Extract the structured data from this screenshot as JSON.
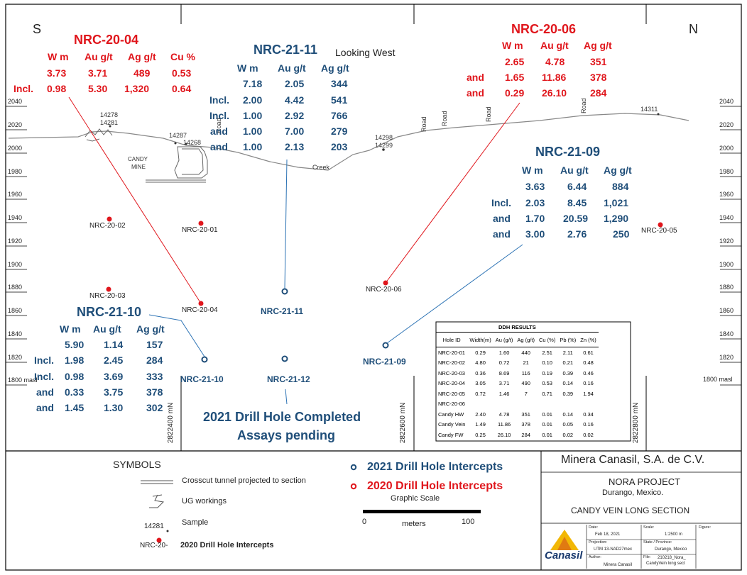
{
  "compass": {
    "south": "S",
    "north": "N",
    "looking": "Looking  West"
  },
  "elevations_left": [
    "2040",
    "2020",
    "2000",
    "1980",
    "1960",
    "1940",
    "1920",
    "1900",
    "1880",
    "1860",
    "1840",
    "1820",
    "1800 masl"
  ],
  "elevations_right": [
    "2040",
    "2020",
    "2000",
    "1980",
    "1960",
    "1940",
    "1920",
    "1900",
    "1880",
    "1860",
    "1840",
    "1820",
    "1800 masl"
  ],
  "northings": [
    "2822400 mN",
    "2822600 mN",
    "2822800 mN"
  ],
  "surface_labels": {
    "s14278": "14278",
    "s14281": "14281",
    "s14287": "14287",
    "s14268": "14268",
    "s14298": "14298",
    "s14299": "14299",
    "s14311": "14311",
    "candy_mine_1": "CANDY",
    "candy_mine_2": "MINE",
    "creek": "Creek",
    "road1": "Road",
    "road2": "Road",
    "road3": "Road",
    "road4": "Road",
    "road5": "Road"
  },
  "holes": {
    "h2001": "NRC-20-01",
    "h2002": "NRC-20-02",
    "h2003": "NRC-20-03",
    "h2004": "NRC-20-04",
    "h2005": "NRC-20-05",
    "h2006": "NRC-20-06",
    "h2109": "NRC-21-09",
    "h2110": "NRC-21-10",
    "h2111": "NRC-21-11",
    "h2112": "NRC-21-12"
  },
  "int_2004": {
    "title": "NRC-20-04",
    "headers": [
      "W m",
      "Au g/t",
      "Ag g/t",
      "Cu %"
    ],
    "rows": [
      {
        "prefix": "",
        "w": "3.73",
        "au": "3.71",
        "ag": "489",
        "cu": "0.53"
      },
      {
        "prefix": "Incl.",
        "w": "0.98",
        "au": "5.30",
        "ag": "1,320",
        "cu": "0.64"
      }
    ]
  },
  "int_2111": {
    "title": "NRC-21-11",
    "headers": [
      "W m",
      "Au g/t",
      "Ag g/t"
    ],
    "rows": [
      {
        "prefix": "",
        "w": "7.18",
        "au": "2.05",
        "ag": "344"
      },
      {
        "prefix": "Incl.",
        "w": "2.00",
        "au": "4.42",
        "ag": "541"
      },
      {
        "prefix": "Incl.",
        "w": "1.00",
        "au": "2.92",
        "ag": "766"
      },
      {
        "prefix": "and",
        "w": "1.00",
        "au": "7.00",
        "ag": "279"
      },
      {
        "prefix": "and",
        "w": "1.00",
        "au": "2.13",
        "ag": "203"
      }
    ]
  },
  "int_2006": {
    "title": "NRC-20-06",
    "headers": [
      "W m",
      "Au g/t",
      "Ag g/t"
    ],
    "rows": [
      {
        "prefix": "",
        "w": "2.65",
        "au": "4.78",
        "ag": "351"
      },
      {
        "prefix": "and",
        "w": "1.65",
        "au": "11.86",
        "ag": "378"
      },
      {
        "prefix": "and",
        "w": "0.29",
        "au": "26.10",
        "ag": "284"
      }
    ]
  },
  "int_2109": {
    "title": "NRC-21-09",
    "headers": [
      "W m",
      "Au g/t",
      "Ag g/t"
    ],
    "rows": [
      {
        "prefix": "",
        "w": "3.63",
        "au": "6.44",
        "ag": "884"
      },
      {
        "prefix": "Incl.",
        "w": "2.03",
        "au": "8.45",
        "ag": "1,021"
      },
      {
        "prefix": "and",
        "w": "1.70",
        "au": "20.59",
        "ag": "1,290"
      },
      {
        "prefix": "and",
        "w": "3.00",
        "au": "2.76",
        "ag": "250"
      }
    ]
  },
  "int_2110": {
    "title": "NRC-21-10",
    "headers": [
      "W m",
      "Au g/t",
      "Ag g/t"
    ],
    "rows": [
      {
        "prefix": "",
        "w": "5.90",
        "au": "1.14",
        "ag": "157"
      },
      {
        "prefix": "Incl.",
        "w": "1.98",
        "au": "2.45",
        "ag": "284"
      },
      {
        "prefix": "Incl.",
        "w": "0.98",
        "au": "3.69",
        "ag": "333"
      },
      {
        "prefix": "and",
        "w": "0.33",
        "au": "3.75",
        "ag": "378"
      },
      {
        "prefix": "and",
        "w": "1.45",
        "au": "1.30",
        "ag": "302"
      }
    ]
  },
  "pending_note": {
    "line1": "2021 Drill Hole Completed",
    "line2": "Assays pending"
  },
  "ddh": {
    "title": "DDH RESULTS",
    "headers": [
      "Hole ID",
      "Width(m)",
      "Au (g/t)",
      "Ag (g/t)",
      "Cu (%)",
      "Pb (%)",
      "Zn (%)"
    ],
    "rows": [
      [
        "NRC-20-01",
        "0.29",
        "1.60",
        "440",
        "2.51",
        "2.11",
        "0.61"
      ],
      [
        "NRC-20-02",
        "4.80",
        "0.72",
        "21",
        "0.10",
        "0.21",
        "0.48"
      ],
      [
        "NRC-20-03",
        "0.36",
        "8.69",
        "116",
        "0.19",
        "0.39",
        "0.46"
      ],
      [
        "NRC-20-04",
        "3.05",
        "3.71",
        "490",
        "0.53",
        "0.14",
        "0.16"
      ],
      [
        "NRC-20-05",
        "0.72",
        "1.46",
        "7",
        "0.71",
        "0.39",
        "1.94"
      ],
      [
        "NRC-20-06",
        "",
        "",
        "",
        "",
        "",
        ""
      ],
      [
        "Candy HW",
        "2.40",
        "4.78",
        "351",
        "0.01",
        "0.14",
        "0.34"
      ],
      [
        "Candy Vein",
        "1.49",
        "11.86",
        "378",
        "0.01",
        "0.05",
        "0.16"
      ],
      [
        "Candy FW",
        "0.25",
        "26.10",
        "284",
        "0.01",
        "0.02",
        "0.02"
      ]
    ]
  },
  "legend": {
    "title": "SYMBOLS",
    "tunnel": "Crosscut tunnel projected to section",
    "ug": "UG workings",
    "sample_num": "14281",
    "sample": "Sample",
    "hole_prefix": "NRC-20-",
    "hole": "2020 Drill Hole Intercepts",
    "key_2021": "2021 Drill Hole Intercepts",
    "key_2020": "2020 Drill Hole Intercepts",
    "scale_title": "Graphic Scale",
    "scale_0": "0",
    "scale_units": "meters",
    "scale_100": "100"
  },
  "title_block": {
    "company": "Minera Canasil, S.A. de C.V.",
    "project": "NORA PROJECT",
    "location": "Durango, Mexico.",
    "section": "CANDY VEIN LONG SECTION",
    "logo": "Canasil",
    "date_label": "Date:",
    "date": "Feb 18, 2021",
    "scale_label": "Scale:",
    "scale": "1:2500 m",
    "figure_label": "Figure:",
    "projection_label": "Projection:",
    "projection": "UTM 13-NAD27mex",
    "state_label": "State / Province:",
    "state": "Durango, Mexico",
    "author_label": "Author:",
    "author": "Minera Canasil",
    "file_label": "File:",
    "file1": "210218_Nora_",
    "file2": "CandyVein long sect"
  },
  "colors": {
    "red": "#e0161c",
    "blue": "#1f4e79"
  }
}
